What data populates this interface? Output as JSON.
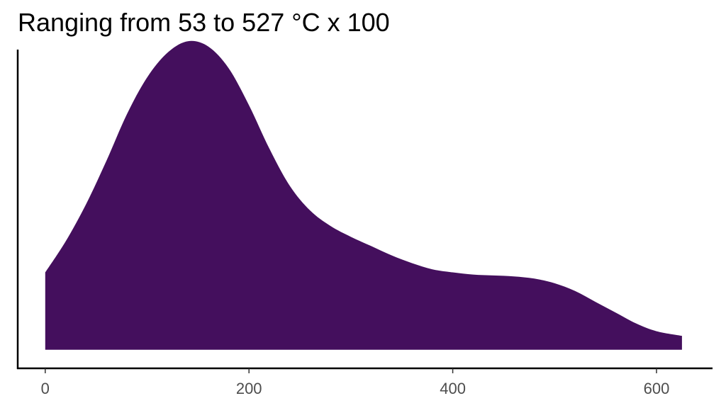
{
  "chart_data": {
    "type": "area",
    "title": "Ranging from 53 to 527 °C x 100",
    "xlabel": "",
    "ylabel": "",
    "xlim": [
      -27,
      655
    ],
    "ylim": [
      -0.06,
      0.97
    ],
    "x_ticks": [
      0,
      200,
      400,
      600
    ],
    "x_tick_labels": [
      "0",
      "200",
      "400",
      "600"
    ],
    "y_axis_ticks_shown": false,
    "grid": false,
    "legend": "none",
    "fill_color": "#440f5d",
    "series": [
      {
        "x": [
          0,
          20,
          40,
          60,
          80,
          100,
          120,
          140,
          160,
          180,
          200,
          220,
          240,
          260,
          280,
          300,
          320,
          340,
          360,
          380,
          400,
          420,
          440,
          460,
          480,
          500,
          520,
          540,
          560,
          580,
          600,
          625
        ],
        "y": [
          0.25,
          0.35,
          0.47,
          0.61,
          0.76,
          0.88,
          0.96,
          0.997,
          0.98,
          0.91,
          0.79,
          0.65,
          0.53,
          0.45,
          0.4,
          0.365,
          0.335,
          0.305,
          0.28,
          0.26,
          0.25,
          0.243,
          0.24,
          0.237,
          0.23,
          0.215,
          0.19,
          0.155,
          0.12,
          0.085,
          0.06,
          0.045
        ]
      }
    ]
  }
}
